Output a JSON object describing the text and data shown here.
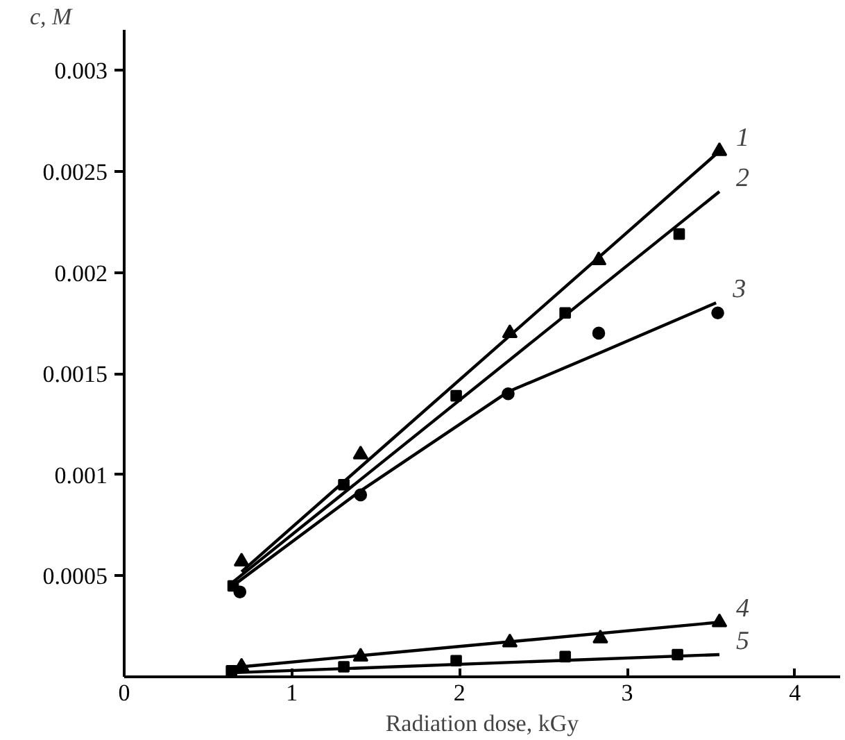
{
  "chart_data": {
    "type": "scatter",
    "xlabel": "Radiation dose, kGy",
    "ylabel": "c, M",
    "xlim": [
      0,
      4.27
    ],
    "ylim": [
      0,
      0.0032
    ],
    "xticks": [
      0,
      1,
      2,
      3,
      4
    ],
    "yticks": [
      0.0005,
      0.001,
      0.0015,
      0.002,
      0.0025,
      0.003
    ],
    "grid": false,
    "series": [
      {
        "marker": "triangle",
        "color": "#000000",
        "x": [
          0.7,
          1.41,
          2.3,
          2.83,
          3.55
        ],
        "values": [
          0.00057,
          0.0011,
          0.0017,
          0.00206,
          0.0026
        ]
      },
      {
        "type": "line",
        "name": "1",
        "marker": "none",
        "color": "#000000",
        "x": [
          0.7,
          3.55
        ],
        "values": [
          0.00052,
          0.0026
        ]
      },
      {
        "marker": "square",
        "color": "#000000",
        "x": [
          0.65,
          1.31,
          1.98,
          2.63,
          3.31
        ],
        "values": [
          0.00045,
          0.00095,
          0.00139,
          0.0018,
          0.00219
        ]
      },
      {
        "type": "line",
        "name": "2",
        "marker": "none",
        "color": "#000000",
        "x": [
          0.65,
          3.55
        ],
        "values": [
          0.00047,
          0.0024
        ]
      },
      {
        "marker": "circle",
        "color": "#000000",
        "x": [
          0.69,
          1.41,
          2.29,
          2.83,
          3.54
        ],
        "values": [
          0.00042,
          0.0009,
          0.0014,
          0.0017,
          0.0018
        ]
      },
      {
        "type": "line",
        "name": "3",
        "marker": "none",
        "color": "#000000",
        "x": [
          0.68,
          1.41,
          2.29,
          2.83,
          3.53
        ],
        "values": [
          0.00047,
          0.00092,
          0.00141,
          0.0016,
          0.00185
        ]
      },
      {
        "marker": "triangle",
        "color": "#000000",
        "x": [
          0.7,
          1.41,
          2.3,
          2.84,
          3.55
        ],
        "values": [
          5e-05,
          0.0001,
          0.00017,
          0.00019,
          0.00027
        ]
      },
      {
        "type": "line",
        "name": "4",
        "marker": "none",
        "color": "#000000",
        "x": [
          0.7,
          3.55
        ],
        "values": [
          5e-05,
          0.00027
        ]
      },
      {
        "marker": "square",
        "color": "#000000",
        "x": [
          0.64,
          1.31,
          1.98,
          2.63,
          3.3
        ],
        "values": [
          3e-05,
          5e-05,
          8e-05,
          0.0001,
          0.00011
        ]
      },
      {
        "type": "line",
        "name": "5",
        "marker": "none",
        "color": "#000000",
        "x": [
          0.64,
          3.55
        ],
        "values": [
          2e-05,
          0.00011
        ]
      }
    ]
  }
}
